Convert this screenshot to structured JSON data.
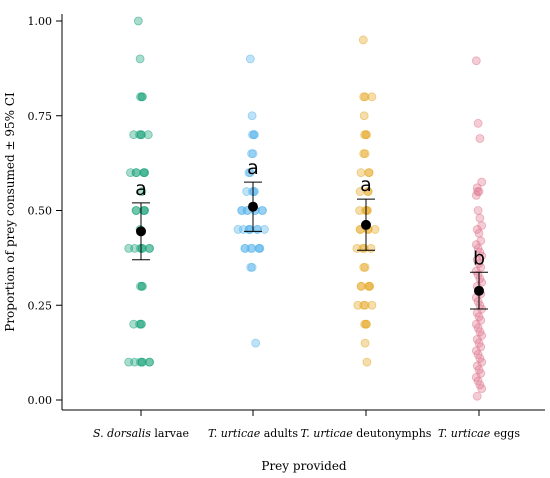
{
  "chart_data": {
    "type": "scatter",
    "title": "",
    "xlabel": "Prey provided",
    "ylabel": "Proportion of prey consumed ± 95% CI",
    "ylim": [
      0,
      1.05
    ],
    "yticks": [
      "0.00",
      "0.25",
      "0.50",
      "0.75",
      "1.00"
    ],
    "grid": false,
    "categories": [
      {
        "italic": "S. dorsalis",
        "plain": " larvae"
      },
      {
        "italic": "T. urticae",
        "plain": " adults"
      },
      {
        "italic": "T. urticae",
        "plain": " deutonymphs"
      },
      {
        "italic": "T. urticae",
        "plain": " eggs"
      }
    ],
    "groups": [
      {
        "color": "#1aa37a",
        "mean": 0.445,
        "ci_low": 0.37,
        "ci_high": 0.52,
        "letter": "a",
        "points": [
          1.0,
          0.9,
          0.8,
          0.8,
          0.8,
          0.7,
          0.7,
          0.7,
          0.7,
          0.7,
          0.6,
          0.6,
          0.6,
          0.6,
          0.6,
          0.6,
          0.55,
          0.5,
          0.5,
          0.5,
          0.5,
          0.5,
          0.45,
          0.4,
          0.4,
          0.4,
          0.4,
          0.4,
          0.4,
          0.4,
          0.3,
          0.3,
          0.3,
          0.2,
          0.2,
          0.2,
          0.2,
          0.1,
          0.1,
          0.1,
          0.1,
          0.1,
          0.1,
          0.1
        ]
      },
      {
        "color": "#56b4e9",
        "mean": 0.51,
        "ci_low": 0.445,
        "ci_high": 0.575,
        "letter": "a",
        "points": [
          0.9,
          0.75,
          0.7,
          0.7,
          0.7,
          0.65,
          0.65,
          0.6,
          0.6,
          0.55,
          0.55,
          0.55,
          0.55,
          0.5,
          0.5,
          0.5,
          0.5,
          0.5,
          0.5,
          0.5,
          0.5,
          0.45,
          0.45,
          0.45,
          0.45,
          0.45,
          0.45,
          0.45,
          0.45,
          0.4,
          0.4,
          0.4,
          0.4,
          0.4,
          0.4,
          0.4,
          0.35,
          0.35,
          0.15
        ]
      },
      {
        "color": "#e6a826",
        "mean": 0.462,
        "ci_low": 0.395,
        "ci_high": 0.53,
        "letter": "a",
        "points": [
          0.95,
          0.8,
          0.8,
          0.8,
          0.75,
          0.7,
          0.7,
          0.7,
          0.65,
          0.65,
          0.6,
          0.6,
          0.6,
          0.55,
          0.55,
          0.55,
          0.5,
          0.5,
          0.5,
          0.5,
          0.45,
          0.45,
          0.45,
          0.45,
          0.45,
          0.4,
          0.4,
          0.4,
          0.4,
          0.35,
          0.35,
          0.3,
          0.3,
          0.3,
          0.3,
          0.3,
          0.25,
          0.25,
          0.25,
          0.25,
          0.2,
          0.2,
          0.2,
          0.15,
          0.1
        ]
      },
      {
        "color": "#e07a90",
        "mean": 0.288,
        "ci_low": 0.24,
        "ci_high": 0.337,
        "letter": "b",
        "points": [
          0.895,
          0.73,
          0.69,
          0.575,
          0.56,
          0.55,
          0.55,
          0.54,
          0.5,
          0.48,
          0.46,
          0.45,
          0.44,
          0.42,
          0.41,
          0.4,
          0.39,
          0.38,
          0.37,
          0.36,
          0.35,
          0.34,
          0.33,
          0.32,
          0.31,
          0.3,
          0.29,
          0.28,
          0.27,
          0.26,
          0.25,
          0.24,
          0.23,
          0.22,
          0.21,
          0.2,
          0.19,
          0.18,
          0.17,
          0.16,
          0.15,
          0.14,
          0.13,
          0.12,
          0.11,
          0.1,
          0.09,
          0.08,
          0.07,
          0.06,
          0.05,
          0.04,
          0.03,
          0.01
        ]
      }
    ]
  }
}
